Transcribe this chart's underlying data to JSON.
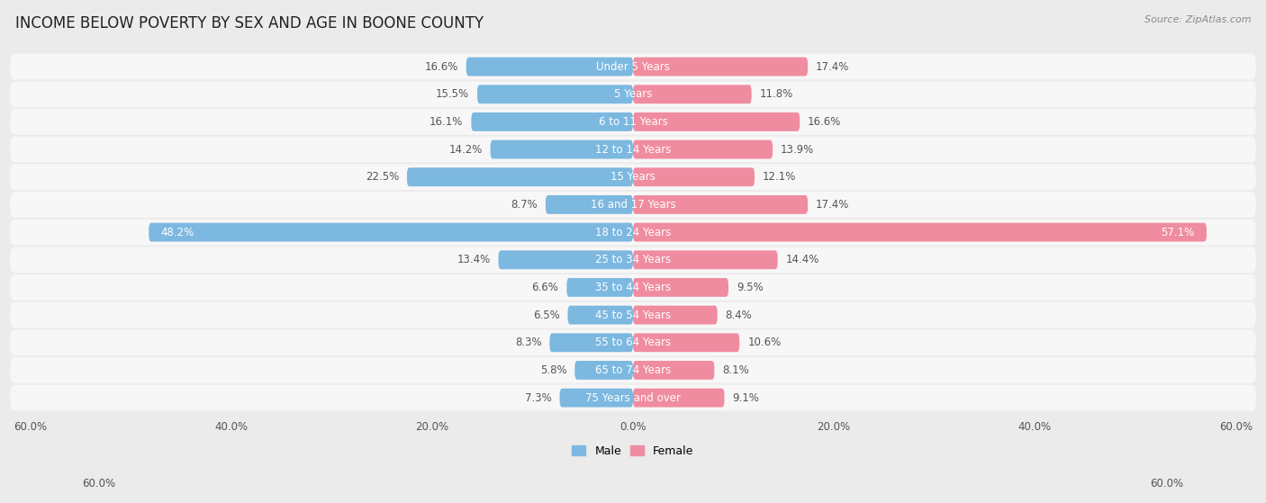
{
  "title": "INCOME BELOW POVERTY BY SEX AND AGE IN BOONE COUNTY",
  "source": "Source: ZipAtlas.com",
  "categories": [
    "Under 5 Years",
    "5 Years",
    "6 to 11 Years",
    "12 to 14 Years",
    "15 Years",
    "16 and 17 Years",
    "18 to 24 Years",
    "25 to 34 Years",
    "35 to 44 Years",
    "45 to 54 Years",
    "55 to 64 Years",
    "65 to 74 Years",
    "75 Years and over"
  ],
  "male_values": [
    16.6,
    15.5,
    16.1,
    14.2,
    22.5,
    8.7,
    48.2,
    13.4,
    6.6,
    6.5,
    8.3,
    5.8,
    7.3
  ],
  "female_values": [
    17.4,
    11.8,
    16.6,
    13.9,
    12.1,
    17.4,
    57.1,
    14.4,
    9.5,
    8.4,
    10.6,
    8.1,
    9.1
  ],
  "male_color": "#7cb8e0",
  "female_color": "#f08ca0",
  "male_label": "Male",
  "female_label": "Female",
  "axis_limit": 60.0,
  "background_color": "#ebebeb",
  "row_bg_color": "#f7f7f7",
  "title_fontsize": 12,
  "source_fontsize": 8,
  "category_fontsize": 8.5,
  "value_fontsize": 8.5,
  "tick_fontsize": 8.5
}
